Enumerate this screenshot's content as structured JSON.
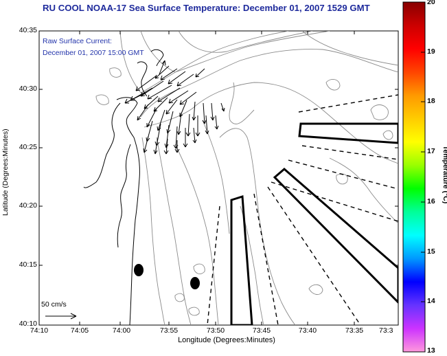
{
  "title": "RU COOL  NOAA-17  Sea Surface Temperature:  December 01, 2007 1529 GMT",
  "annotation": {
    "line1": "Raw Surface Current:",
    "line2": "December 01, 2007 15:00 GMT"
  },
  "axes": {
    "xlabel": "Longitude (Degrees:Minutes)",
    "ylabel": "Latitude (Degrees:Minutes)",
    "xticks": [
      "74:10",
      "74:05",
      "74:00",
      "73:55",
      "73:50",
      "73:45",
      "73:40",
      "73:35",
      "73:3"
    ],
    "yticks": [
      "40:35",
      "40:30",
      "40:25",
      "40:20",
      "40:15",
      "40:10"
    ]
  },
  "colorbar": {
    "label": "Temperature (°C)",
    "ticks": [
      "20",
      "19",
      "18",
      "17",
      "16",
      "15",
      "14",
      "13"
    ],
    "range": [
      13,
      20
    ],
    "colors": [
      "#ff99dd",
      "#cc33ff",
      "#6633ff",
      "#0000ff",
      "#0099ff",
      "#00ffff",
      "#00ff99",
      "#00ff00",
      "#99ff00",
      "#ffff00",
      "#ffcc00",
      "#ff9900",
      "#ff4400",
      "#ff0000",
      "#cc0000",
      "#880000"
    ]
  },
  "scale": {
    "label": "50 cm/s"
  }
}
